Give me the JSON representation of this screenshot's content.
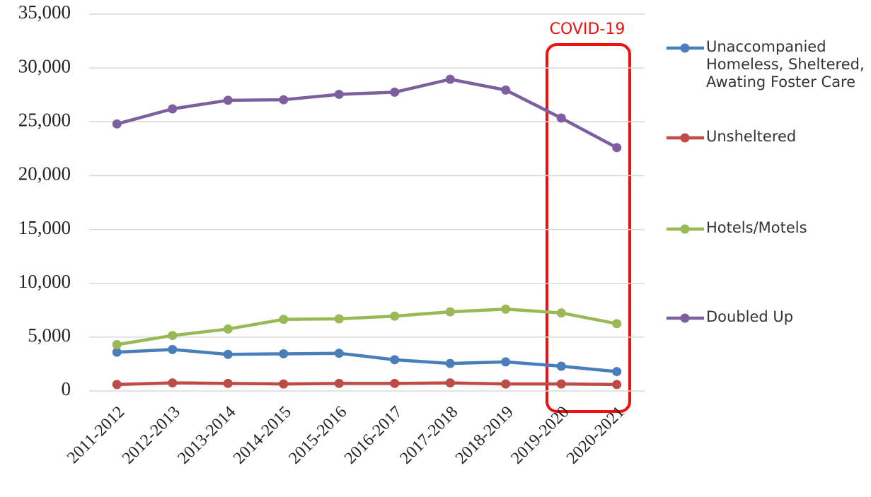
{
  "chart_data": {
    "type": "line",
    "categories": [
      "2011-2012",
      "2012-2013",
      "2013-2014",
      "2014-2015",
      "2015-2016",
      "2016-2017",
      "2017-2018",
      "2018-2019",
      "2019-2020",
      "2020-2021"
    ],
    "series": [
      {
        "name": "Unaccompanied Homeless, Sheltered, Awating Foster Care",
        "color": "#4a7ebb",
        "values": [
          3600,
          3850,
          3400,
          3450,
          3500,
          2900,
          2550,
          2700,
          2300,
          1800
        ]
      },
      {
        "name": "Unsheltered",
        "color": "#be4b48",
        "values": [
          600,
          750,
          700,
          650,
          700,
          700,
          750,
          650,
          650,
          600
        ]
      },
      {
        "name": "Hotels/Motels",
        "color": "#98b954",
        "values": [
          4300,
          5150,
          5750,
          6650,
          6700,
          6950,
          7350,
          7600,
          7250,
          6250
        ]
      },
      {
        "name": "Doubled Up",
        "color": "#7d5fa0",
        "values": [
          24800,
          26200,
          27000,
          27050,
          27550,
          27750,
          28950,
          27950,
          25350,
          22600
        ]
      }
    ],
    "ylim": [
      0,
      35000
    ],
    "yticks": [
      0,
      {
        "value": 5000,
        "label": "5,000"
      },
      {
        "value": 10000,
        "label": "10,000"
      },
      {
        "value": 15000,
        "label": "15,000"
      },
      {
        "value": 20000,
        "label": "20,000"
      },
      {
        "value": 25000,
        "label": "25,000"
      },
      {
        "value": 30000,
        "label": "30,000"
      },
      {
        "value": 35000,
        "label": "35,000"
      }
    ],
    "grid": true,
    "legend": "right",
    "annotation": "COVID-19"
  }
}
